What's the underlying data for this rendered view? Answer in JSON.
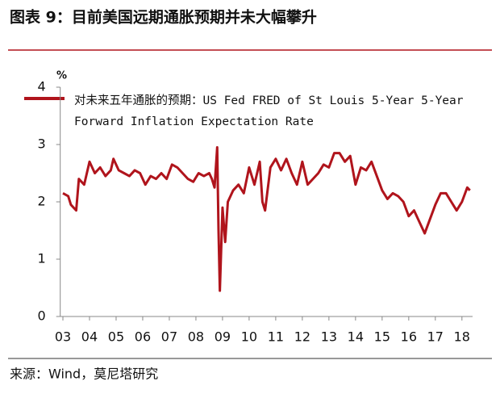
{
  "chart_data": {
    "type": "line",
    "title": "图表 9：目前美国远期通胀预期并未大幅攀升",
    "y_unit": "%",
    "source": "来源：Wind，莫尼塔研究",
    "x": [
      2003.0,
      2003.2,
      2003.3,
      2003.5,
      2003.6,
      2003.8,
      2004.0,
      2004.2,
      2004.4,
      2004.6,
      2004.8,
      2004.9,
      2005.1,
      2005.3,
      2005.5,
      2005.7,
      2005.9,
      2006.1,
      2006.3,
      2006.5,
      2006.7,
      2006.9,
      2007.1,
      2007.3,
      2007.5,
      2007.7,
      2007.9,
      2008.1,
      2008.3,
      2008.5,
      2008.6,
      2008.7,
      2008.8,
      2008.85,
      2008.9,
      2009.0,
      2009.1,
      2009.2,
      2009.4,
      2009.6,
      2009.8,
      2010.0,
      2010.2,
      2010.4,
      2010.5,
      2010.6,
      2010.8,
      2011.0,
      2011.2,
      2011.4,
      2011.6,
      2011.8,
      2012.0,
      2012.2,
      2012.4,
      2012.6,
      2012.8,
      2013.0,
      2013.2,
      2013.4,
      2013.6,
      2013.8,
      2014.0,
      2014.2,
      2014.4,
      2014.6,
      2014.8,
      2015.0,
      2015.2,
      2015.4,
      2015.6,
      2015.8,
      2016.0,
      2016.2,
      2016.4,
      2016.6,
      2016.8,
      2017.0,
      2017.2,
      2017.4,
      2017.6,
      2017.8,
      2018.0,
      2018.2,
      2018.3
    ],
    "series": [
      {
        "name": "对未来五年通胀的预期：US Fed FRED of St Louis 5-Year 5-Year Forward Inflation Expectation Rate",
        "color": "#b0141c",
        "values": [
          2.15,
          2.1,
          1.95,
          1.85,
          2.4,
          2.3,
          2.7,
          2.5,
          2.6,
          2.45,
          2.55,
          2.75,
          2.55,
          2.5,
          2.45,
          2.55,
          2.5,
          2.3,
          2.45,
          2.4,
          2.5,
          2.4,
          2.65,
          2.6,
          2.5,
          2.4,
          2.35,
          2.5,
          2.45,
          2.5,
          2.4,
          2.25,
          2.95,
          1.5,
          0.45,
          1.9,
          1.3,
          2.0,
          2.2,
          2.3,
          2.15,
          2.6,
          2.3,
          2.7,
          2.0,
          1.85,
          2.6,
          2.75,
          2.55,
          2.75,
          2.5,
          2.3,
          2.7,
          2.3,
          2.4,
          2.5,
          2.65,
          2.6,
          2.85,
          2.85,
          2.7,
          2.8,
          2.3,
          2.6,
          2.55,
          2.7,
          2.45,
          2.2,
          2.05,
          2.15,
          2.1,
          2.0,
          1.75,
          1.85,
          1.65,
          1.45,
          1.7,
          1.95,
          2.15,
          2.15,
          2.0,
          1.85,
          2.0,
          2.25,
          2.2
        ]
      }
    ],
    "xlim": [
      2002.9,
      2018.4
    ],
    "xticks": [
      {
        "value": 2003,
        "label": "03"
      },
      {
        "value": 2004,
        "label": "04"
      },
      {
        "value": 2005,
        "label": "05"
      },
      {
        "value": 2006,
        "label": "06"
      },
      {
        "value": 2007,
        "label": "07"
      },
      {
        "value": 2008,
        "label": "08"
      },
      {
        "value": 2009,
        "label": "09"
      },
      {
        "value": 2010,
        "label": "10"
      },
      {
        "value": 2011,
        "label": "11"
      },
      {
        "value": 2012,
        "label": "12"
      },
      {
        "value": 2013,
        "label": "13"
      },
      {
        "value": 2014,
        "label": "14"
      },
      {
        "value": 2015,
        "label": "15"
      },
      {
        "value": 2016,
        "label": "16"
      },
      {
        "value": 2017,
        "label": "17"
      },
      {
        "value": 2018,
        "label": "18"
      }
    ],
    "ylim": [
      0,
      4
    ],
    "yticks": [
      0,
      1,
      2,
      3,
      4
    ]
  }
}
